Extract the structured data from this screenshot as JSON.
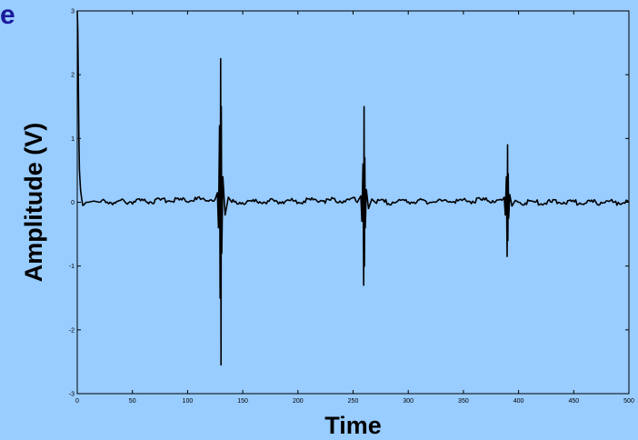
{
  "corner_text": "e",
  "chart_data": {
    "type": "line",
    "title": "",
    "xlabel": "Time",
    "ylabel": "Amplitude (V)",
    "xlim": [
      0,
      500
    ],
    "ylim": [
      -3,
      3
    ],
    "xticks": [
      0,
      50,
      100,
      150,
      200,
      250,
      300,
      350,
      400,
      450,
      500
    ],
    "yticks": [
      -3,
      -2,
      -1,
      0,
      1,
      2,
      3
    ],
    "grid": false,
    "line_color": "#000000",
    "series": [
      {
        "x": [
          0,
          0.5,
          1,
          1.5,
          2,
          3,
          4,
          5,
          6,
          8,
          10,
          15,
          20,
          125,
          127,
          128,
          129,
          129.5,
          130,
          130.3,
          130.6,
          131,
          132,
          134,
          137,
          140,
          255,
          257,
          258,
          259,
          259.6,
          260,
          260.3,
          260.6,
          261,
          262,
          264,
          267,
          270,
          385,
          387,
          388,
          389,
          389.6,
          390,
          390.3,
          390.6,
          391,
          392,
          394,
          397,
          400,
          500
        ],
        "y": [
          3.0,
          2.7,
          1.9,
          1.0,
          0.5,
          0.2,
          0.05,
          -0.05,
          -0.04,
          0.0,
          0.0,
          0.02,
          0.0,
          0.05,
          0.15,
          -0.4,
          1.2,
          -1.5,
          2.25,
          -2.55,
          1.5,
          -0.8,
          0.4,
          -0.2,
          0.08,
          0.0,
          0.04,
          0.1,
          -0.3,
          0.6,
          -1.3,
          1.5,
          -1.0,
          0.7,
          -0.4,
          0.2,
          -0.1,
          0.05,
          0.0,
          0.03,
          0.08,
          -0.2,
          0.4,
          -0.85,
          0.9,
          -0.6,
          0.45,
          -0.25,
          0.12,
          -0.06,
          0.03,
          0.0,
          0.0
        ]
      }
    ]
  }
}
